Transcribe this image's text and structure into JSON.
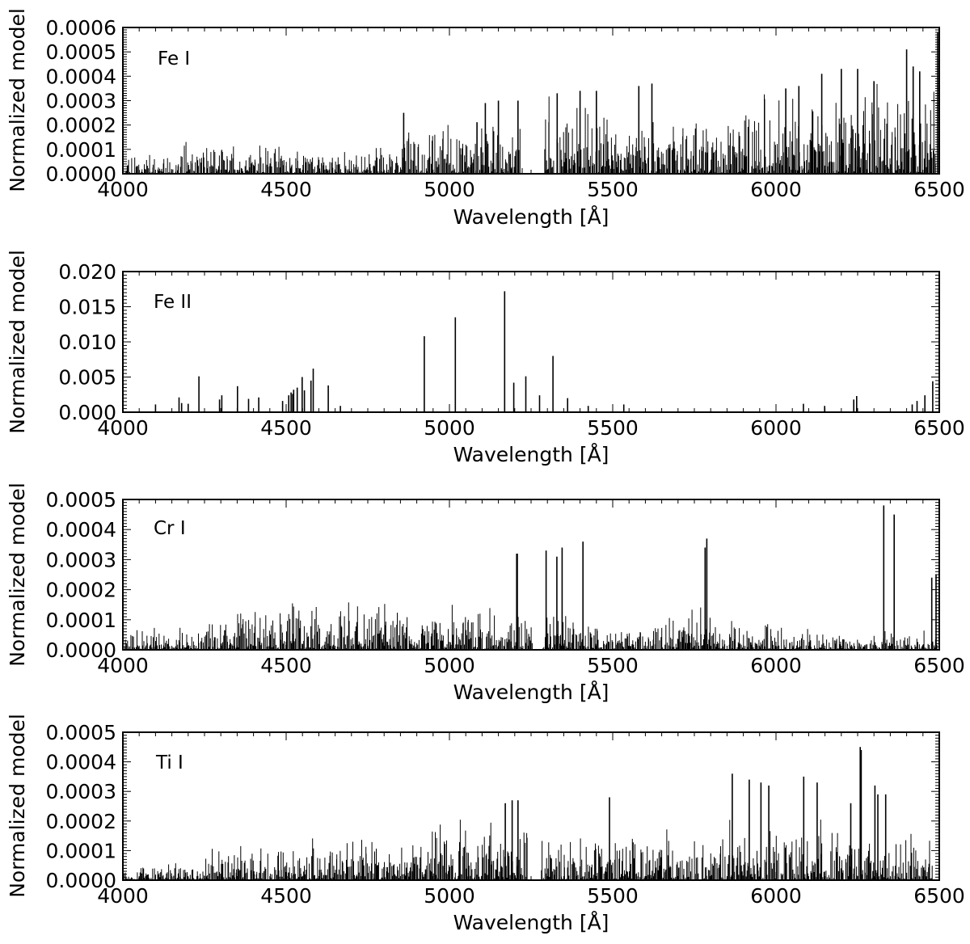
{
  "chart_data": [
    {
      "type": "line",
      "annotation": "Fe I",
      "xlabel": "Wavelength [Å]",
      "ylabel": "Normalized model",
      "xlim": [
        4000,
        6500
      ],
      "ylim": [
        0,
        0.0006
      ],
      "xticks": [
        4000,
        4500,
        5000,
        5500,
        6000,
        6500
      ],
      "xtick_labels": [
        "4000",
        "4500",
        "5000",
        "5500",
        "6000",
        "6500"
      ],
      "yticks": [
        0,
        0.0001,
        0.0002,
        0.0003,
        0.0004,
        0.0005,
        0.0006
      ],
      "ytick_labels": [
        "0.0000",
        "0.0001",
        "0.0002",
        "0.0003",
        "0.0004",
        "0.0005",
        "0.0006"
      ],
      "color": "#000000",
      "dense_envelope": [
        {
          "x": [
            4000,
            4180
          ],
          "max": 0.00011
        },
        {
          "x": [
            4180,
            4400
          ],
          "max": 0.00015
        },
        {
          "x": [
            4400,
            4850
          ],
          "max": 0.00012
        },
        {
          "x": [
            4850,
            5000
          ],
          "max": 0.00023
        },
        {
          "x": [
            5000,
            5225
          ],
          "max": 0.00027
        },
        {
          "x": [
            5290,
            5500
          ],
          "max": 0.00032
        },
        {
          "x": [
            5500,
            5900
          ],
          "max": 0.00026
        },
        {
          "x": [
            5900,
            6300
          ],
          "max": 0.00035
        },
        {
          "x": [
            6300,
            6490
          ],
          "max": 0.00038
        }
      ],
      "gaps": [
        [
          5225,
          5290
        ]
      ],
      "lines": [
        {
          "x": 4860,
          "y": 0.00025
        },
        {
          "x": 5110,
          "y": 0.00029
        },
        {
          "x": 5150,
          "y": 0.0003
        },
        {
          "x": 5210,
          "y": 0.0003
        },
        {
          "x": 5330,
          "y": 0.00033
        },
        {
          "x": 5400,
          "y": 0.00034
        },
        {
          "x": 5450,
          "y": 0.00034
        },
        {
          "x": 5580,
          "y": 0.00036
        },
        {
          "x": 5620,
          "y": 0.00037
        },
        {
          "x": 6030,
          "y": 0.00035
        },
        {
          "x": 6070,
          "y": 0.00036
        },
        {
          "x": 6140,
          "y": 0.00041
        },
        {
          "x": 6200,
          "y": 0.00043
        },
        {
          "x": 6250,
          "y": 0.00043
        },
        {
          "x": 6300,
          "y": 0.00038
        },
        {
          "x": 6400,
          "y": 0.00051
        },
        {
          "x": 6420,
          "y": 0.00044
        },
        {
          "x": 6440,
          "y": 0.00042
        },
        {
          "x": 6495,
          "y": 0.00058
        }
      ]
    },
    {
      "type": "line",
      "annotation": "Fe II",
      "xlabel": "Wavelength [Å]",
      "ylabel": "Normalized model",
      "xlim": [
        4000,
        6500
      ],
      "ylim": [
        0,
        0.02
      ],
      "xticks": [
        4000,
        4500,
        5000,
        5500,
        6000,
        6500
      ],
      "xtick_labels": [
        "4000",
        "4500",
        "5000",
        "5500",
        "6000",
        "6500"
      ],
      "yticks": [
        0,
        0.005,
        0.01,
        0.015,
        0.02
      ],
      "ytick_labels": [
        "0.000",
        "0.005",
        "0.010",
        "0.015",
        "0.020"
      ],
      "color": "#000000",
      "lines": [
        {
          "x": 4100,
          "y": 0.0011
        },
        {
          "x": 4172,
          "y": 0.0021
        },
        {
          "x": 4180,
          "y": 0.0013
        },
        {
          "x": 4200,
          "y": 0.0012
        },
        {
          "x": 4233,
          "y": 0.0051
        },
        {
          "x": 4296,
          "y": 0.0018
        },
        {
          "x": 4303,
          "y": 0.0024
        },
        {
          "x": 4351,
          "y": 0.0037
        },
        {
          "x": 4385,
          "y": 0.0019
        },
        {
          "x": 4416,
          "y": 0.0021
        },
        {
          "x": 4489,
          "y": 0.0016
        },
        {
          "x": 4508,
          "y": 0.0024
        },
        {
          "x": 4515,
          "y": 0.0028
        },
        {
          "x": 4520,
          "y": 0.0026
        },
        {
          "x": 4523,
          "y": 0.0032
        },
        {
          "x": 4534,
          "y": 0.0035
        },
        {
          "x": 4549,
          "y": 0.005
        },
        {
          "x": 4556,
          "y": 0.0031
        },
        {
          "x": 4576,
          "y": 0.0045
        },
        {
          "x": 4583,
          "y": 0.0062
        },
        {
          "x": 4629,
          "y": 0.0038
        },
        {
          "x": 4666,
          "y": 0.0009
        },
        {
          "x": 4923,
          "y": 0.0108
        },
        {
          "x": 5018,
          "y": 0.0135
        },
        {
          "x": 5169,
          "y": 0.0172
        },
        {
          "x": 5197,
          "y": 0.0042
        },
        {
          "x": 5234,
          "y": 0.0051
        },
        {
          "x": 5276,
          "y": 0.0024
        },
        {
          "x": 5317,
          "y": 0.008
        },
        {
          "x": 5362,
          "y": 0.002
        },
        {
          "x": 5425,
          "y": 0.0009
        },
        {
          "x": 5534,
          "y": 0.0011
        },
        {
          "x": 6084,
          "y": 0.0012
        },
        {
          "x": 6149,
          "y": 0.0009
        },
        {
          "x": 6238,
          "y": 0.0018
        },
        {
          "x": 6247,
          "y": 0.0023
        },
        {
          "x": 6417,
          "y": 0.0011
        },
        {
          "x": 6432,
          "y": 0.0016
        },
        {
          "x": 6456,
          "y": 0.0024
        },
        {
          "x": 6480,
          "y": 0.0044
        }
      ]
    },
    {
      "type": "line",
      "annotation": "Cr I",
      "xlabel": "Wavelength [Å]",
      "ylabel": "Normalized model",
      "xlim": [
        4000,
        6500
      ],
      "ylim": [
        0,
        0.0005
      ],
      "xticks": [
        4000,
        4500,
        5000,
        5500,
        6000,
        6500
      ],
      "xtick_labels": [
        "4000",
        "4500",
        "5000",
        "5500",
        "6000",
        "6500"
      ],
      "yticks": [
        0,
        0.0001,
        0.0002,
        0.0003,
        0.0004,
        0.0005
      ],
      "ytick_labels": [
        "0.0000",
        "0.0001",
        "0.0002",
        "0.0003",
        "0.0004",
        "0.0005"
      ],
      "color": "#000000",
      "dense_envelope": [
        {
          "x": [
            4000,
            4250
          ],
          "max": 8e-05
        },
        {
          "x": [
            4250,
            4350
          ],
          "max": 0.00012
        },
        {
          "x": [
            4350,
            4700
          ],
          "max": 0.00018
        },
        {
          "x": [
            4700,
            5100
          ],
          "max": 0.00017
        },
        {
          "x": [
            5100,
            5255
          ],
          "max": 0.00016
        },
        {
          "x": [
            5285,
            5400
          ],
          "max": 0.00014
        },
        {
          "x": [
            5400,
            5650
          ],
          "max": 9e-05
        },
        {
          "x": [
            5650,
            5800
          ],
          "max": 0.00017
        },
        {
          "x": [
            5800,
            6100
          ],
          "max": 0.0001
        },
        {
          "x": [
            6100,
            6300
          ],
          "max": 6e-05
        },
        {
          "x": [
            6300,
            6495
          ],
          "max": 8e-05
        }
      ],
      "gaps": [
        [
          5255,
          5285
        ]
      ],
      "lines": [
        {
          "x": 5206,
          "y": 0.00032
        },
        {
          "x": 5208,
          "y": 0.00032
        },
        {
          "x": 5296,
          "y": 0.00033
        },
        {
          "x": 5329,
          "y": 0.00031
        },
        {
          "x": 5345,
          "y": 0.00034
        },
        {
          "x": 5409,
          "y": 0.00036
        },
        {
          "x": 5783,
          "y": 0.00034
        },
        {
          "x": 5788,
          "y": 0.00037
        },
        {
          "x": 6330,
          "y": 0.00048
        },
        {
          "x": 6362,
          "y": 0.00045
        },
        {
          "x": 6477,
          "y": 0.00024
        },
        {
          "x": 6490,
          "y": 0.00025
        }
      ]
    },
    {
      "type": "line",
      "annotation": "Ti I",
      "xlabel": "Wavelength [Å]",
      "ylabel": "Normalized model",
      "xlim": [
        4000,
        6500
      ],
      "ylim": [
        0,
        0.0005
      ],
      "xticks": [
        4000,
        4500,
        5000,
        5500,
        6000,
        6500
      ],
      "xtick_labels": [
        "4000",
        "4500",
        "5000",
        "5500",
        "6000",
        "6500"
      ],
      "yticks": [
        0,
        0.0001,
        0.0002,
        0.0003,
        0.0004,
        0.0005
      ],
      "ytick_labels": [
        "0.0000",
        "0.0001",
        "0.0002",
        "0.0003",
        "0.0004",
        "0.0005"
      ],
      "color": "#000000",
      "dense_envelope": [
        {
          "x": [
            4000,
            4250
          ],
          "max": 6e-05
        },
        {
          "x": [
            4250,
            4350
          ],
          "max": 0.00013
        },
        {
          "x": [
            4350,
            4580
          ],
          "max": 0.00016
        },
        {
          "x": [
            4580,
            4950
          ],
          "max": 0.00017
        },
        {
          "x": [
            4950,
            5240
          ],
          "max": 0.00022
        },
        {
          "x": [
            5280,
            5850
          ],
          "max": 0.00018
        },
        {
          "x": [
            5850,
            6250
          ],
          "max": 0.00024
        },
        {
          "x": [
            6250,
            6480
          ],
          "max": 0.0002
        }
      ],
      "gaps": [
        [
          5240,
          5280
        ]
      ],
      "lines": [
        {
          "x": 5171,
          "y": 0.00026
        },
        {
          "x": 5192,
          "y": 0.00027
        },
        {
          "x": 5210,
          "y": 0.00027
        },
        {
          "x": 5490,
          "y": 0.00028
        },
        {
          "x": 5866,
          "y": 0.00036
        },
        {
          "x": 5918,
          "y": 0.00034
        },
        {
          "x": 5954,
          "y": 0.00033
        },
        {
          "x": 5978,
          "y": 0.00032
        },
        {
          "x": 6085,
          "y": 0.00035
        },
        {
          "x": 6126,
          "y": 0.00033
        },
        {
          "x": 6229,
          "y": 0.00026
        },
        {
          "x": 6258,
          "y": 0.00045
        },
        {
          "x": 6261,
          "y": 0.00044
        },
        {
          "x": 6303,
          "y": 0.00032
        },
        {
          "x": 6312,
          "y": 0.00029
        },
        {
          "x": 6336,
          "y": 0.00029
        }
      ]
    }
  ]
}
